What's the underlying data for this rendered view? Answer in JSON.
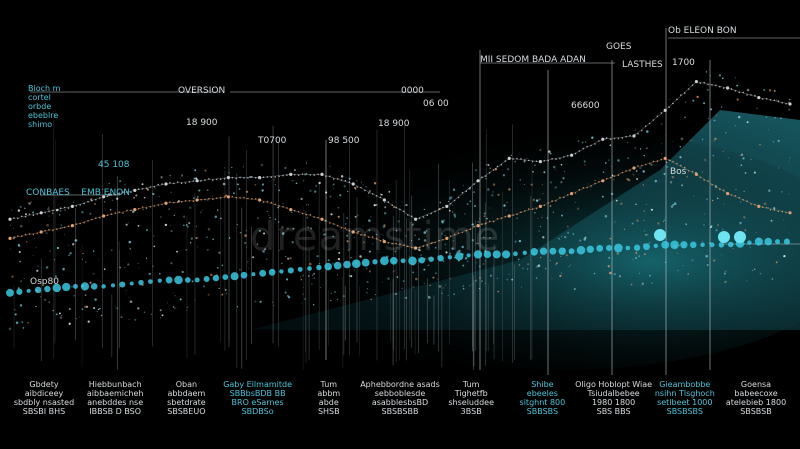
{
  "colors": {
    "background": "#000000",
    "cyan": "#39c8e0",
    "orange": "#e0a070",
    "white_line": "#c9ced2",
    "teal_glow": "#1f8f9a"
  },
  "watermark": "dreamstime",
  "labels": {
    "top_right": "Ob ELEON BON",
    "goes": "GOES",
    "mid_title": "MII SEDOM BADA ADAN",
    "lasthes": "LASTHES",
    "y1700": "1700",
    "oversion": "OVERSION",
    "n0000": "0000",
    "n0600": "06 00",
    "n6500": "66600",
    "n1800": "18 900",
    "n1900": "18 900",
    "t0700": "T0700",
    "n9300": "98 500",
    "n4510": "45 108",
    "bos": "Bos",
    "combes": "CONBAES    EMB ENON",
    "ospal": "Osp80",
    "left_block": "Bioch m\ncortel\norbde\nebeblre\nshimo"
  },
  "bottom_labels": [
    {
      "text": "Gbdety\naibdiceey\nsbdbly nsasted\nSBSBI BHS",
      "color": "w"
    },
    {
      "text": "Hiebbunbach\naibbaemicheh\nanebddes nse\nIBBSB D BSO",
      "color": "w"
    },
    {
      "text": "Oban\nabbdaem\nsbetdrate\nSBSBEUO",
      "color": "w"
    },
    {
      "text": "Gaby Eilmamitde\nSBBbsBDB BB\nBRO eSarnes\nSBDBSo",
      "color": "b"
    },
    {
      "text": "Tum\nabbm\nabde\nSHSB",
      "color": "w"
    },
    {
      "text": "Aphebbordne asads\nsebboblesde\nasabblesbsBD\nSBSBSBB",
      "color": "w"
    },
    {
      "text": "Tum\nTighetfb\nshseluddee\n3BSB",
      "color": "w"
    },
    {
      "text": "Shibe\nebeeles\nsitghnt 800\nSBBSBS",
      "color": "b"
    },
    {
      "text": "Oligo Hoblopt Wiae\nTsiudalbebee\n1980 1800\nSBS BBS",
      "color": "w"
    },
    {
      "text": "Gieambobbe\nnsihn Tlsghoch\nsetlbeet 1000\nSBSBSBS",
      "color": "b"
    },
    {
      "text": "Goensa\nbabeecoxe\natelebieb 1800\nSBSBSB",
      "color": "w"
    }
  ],
  "chart_data": {
    "type": "line",
    "title": "",
    "xlabel": "",
    "ylabel": "",
    "x": [
      0,
      4,
      8,
      12,
      16,
      20,
      24,
      28,
      32,
      36,
      40,
      44,
      48,
      52,
      56,
      60,
      64,
      68,
      72,
      76,
      80,
      84,
      88,
      92,
      96,
      100
    ],
    "ylim": [
      0,
      100
    ],
    "xlim": [
      0,
      100
    ],
    "grid": false,
    "series": [
      {
        "name": "",
        "color": "#c9ced2",
        "style": "dotted",
        "values": [
          44,
          46,
          48,
          51,
          53,
          55,
          56,
          57,
          57,
          58,
          58,
          55,
          50,
          44,
          48,
          56,
          63,
          62,
          64,
          69,
          70,
          78,
          87,
          85,
          82,
          80
        ]
      },
      {
        "name": "",
        "color": "#e0a070",
        "style": "dotted",
        "values": [
          38,
          40,
          42,
          45,
          47,
          49,
          50,
          51,
          50,
          47,
          44,
          40,
          37,
          35,
          38,
          42,
          45,
          48,
          52,
          56,
          60,
          63,
          58,
          52,
          48,
          46
        ]
      },
      {
        "name": "",
        "color": "#39c8e0",
        "style": "large-dots",
        "values": [
          21,
          22,
          23,
          23,
          24,
          25,
          25,
          26,
          27,
          28,
          29,
          30,
          31,
          31,
          32,
          33,
          33,
          34,
          34,
          35,
          35,
          36,
          36,
          36,
          37,
          37
        ]
      }
    ]
  }
}
